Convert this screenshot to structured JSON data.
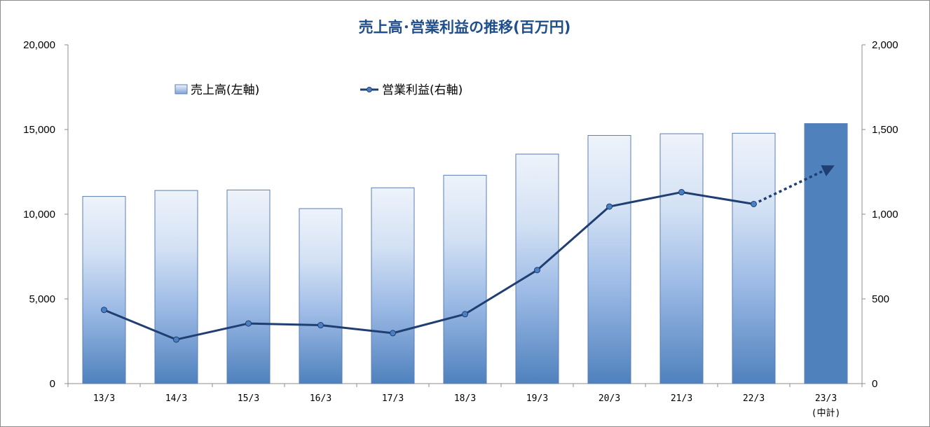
{
  "chart_data": {
    "type": "bar+line",
    "title": "売上高･営業利益の推移(百万円)",
    "categories": [
      "13/3",
      "14/3",
      "15/3",
      "16/3",
      "17/3",
      "18/3",
      "19/3",
      "20/3",
      "21/3",
      "22/3",
      "23/3"
    ],
    "category_sublabels": [
      "",
      "",
      "",
      "",
      "",
      "",
      "",
      "",
      "",
      "",
      "(中計)"
    ],
    "y_left": {
      "min": 0,
      "max": 20000,
      "ticks": [
        "0",
        "5,000",
        "10,000",
        "15,000",
        "20,000"
      ]
    },
    "y_right": {
      "min": 0,
      "max": 2000,
      "ticks": [
        "0",
        "500",
        "1,000",
        "1,500",
        "2,000"
      ]
    },
    "series": [
      {
        "name": "売上高(左軸)",
        "type": "bar",
        "axis": "left",
        "values": [
          11050,
          11400,
          11430,
          10330,
          11560,
          12300,
          13550,
          14650,
          14750,
          14780,
          15350
        ],
        "highlight_last": true
      },
      {
        "name": "営業利益(右軸)",
        "type": "line",
        "axis": "right",
        "values": [
          435,
          260,
          355,
          345,
          298,
          410,
          670,
          1045,
          1130,
          1060,
          null
        ],
        "projection": {
          "from_index": 9,
          "to_value": 1275
        }
      }
    ],
    "legend_position": "top-left",
    "colors": {
      "bar_top": "#eef3fb",
      "bar_bottom": "#4f81bd",
      "bar_border": "#5b7fb5",
      "bar_highlight": "#4f81bd",
      "line": "#1f3f73",
      "marker": "#4a7fc0",
      "title": "#1f4e8c"
    }
  }
}
